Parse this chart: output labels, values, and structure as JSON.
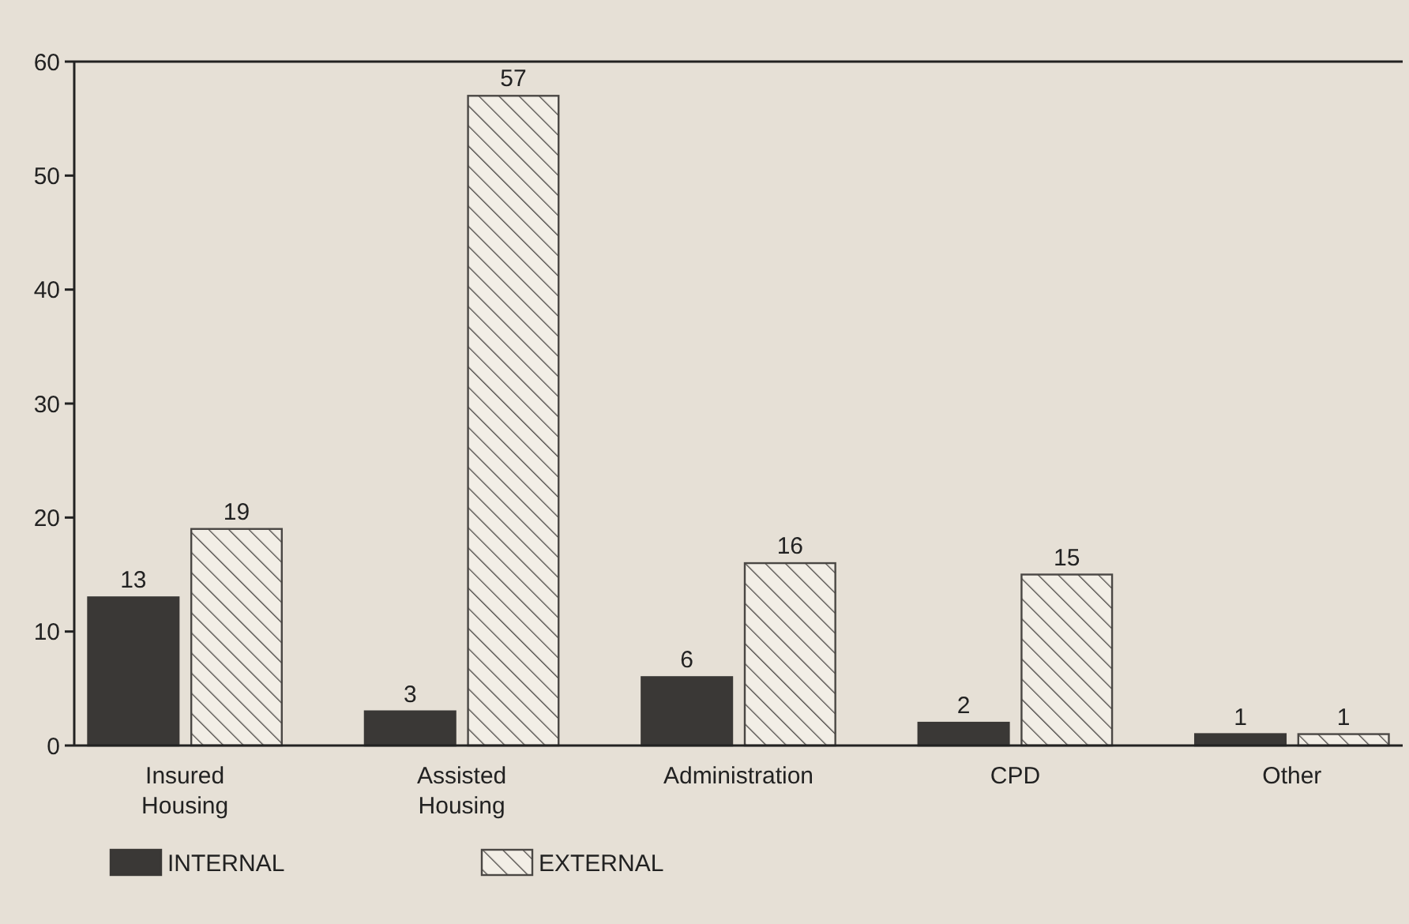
{
  "chart_data": {
    "type": "bar",
    "categories": [
      "Insured Housing",
      "Assisted Housing",
      "Administration",
      "CPD",
      "Other"
    ],
    "series": [
      {
        "name": "INTERNAL",
        "color": "#3a3836",
        "values": [
          13,
          3,
          6,
          2,
          1
        ]
      },
      {
        "name": "EXTERNAL",
        "color": "#4a4744",
        "values": [
          19,
          57,
          16,
          15,
          1
        ]
      }
    ],
    "ylim": [
      0,
      60
    ],
    "yticks": [
      0,
      10,
      20,
      30,
      40,
      50,
      60
    ],
    "data_labels": true,
    "legend": "bottom left",
    "grid": false
  }
}
